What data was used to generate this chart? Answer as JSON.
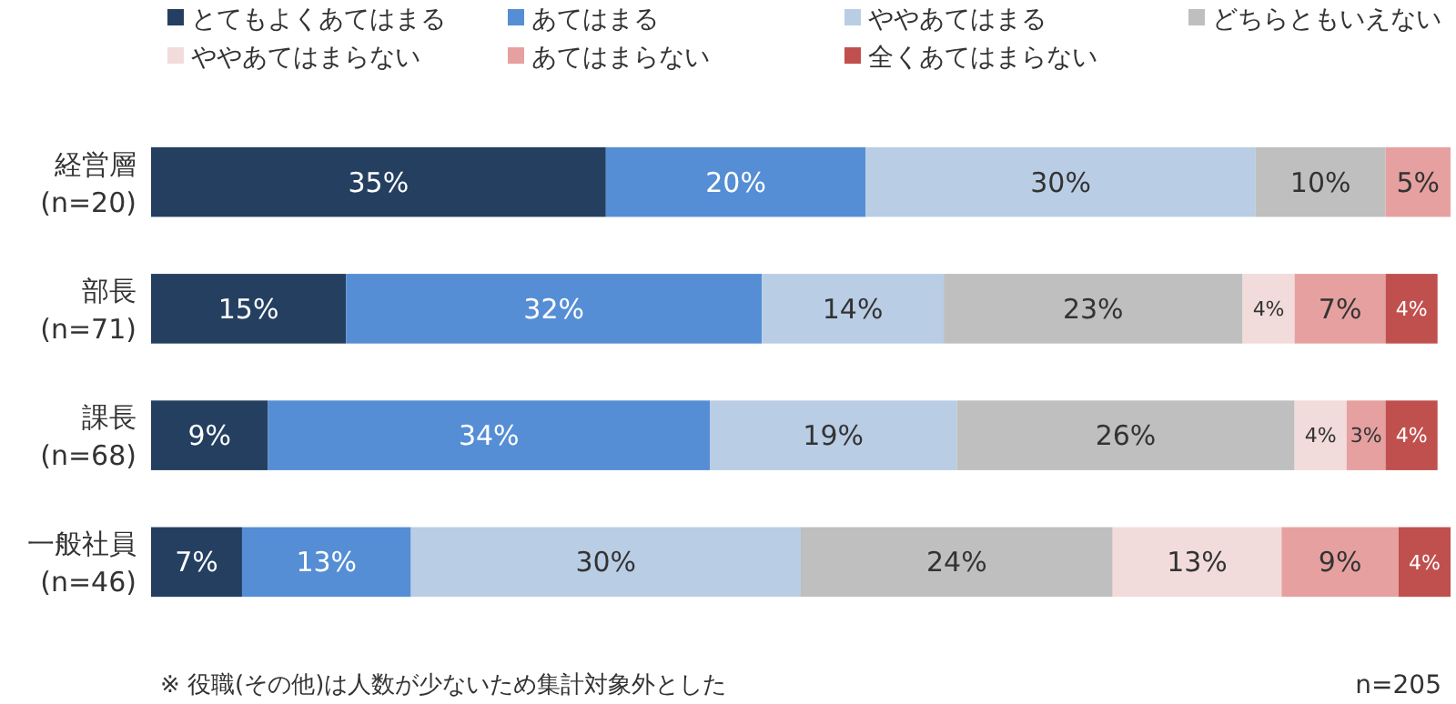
{
  "chart_data": {
    "type": "bar",
    "orientation": "horizontal",
    "stacked": true,
    "categories": [
      "経営層\n(n=20)",
      "部長\n(n=71)",
      "課長\n(n=68)",
      "一般社員\n(n=46)"
    ],
    "series": [
      {
        "name": "とてもよくあてはまる",
        "color": "#243f60",
        "values": [
          35,
          15,
          9,
          7
        ],
        "value_labels": [
          "35%",
          "15%",
          "9%",
          "7%"
        ]
      },
      {
        "name": "あてはまる",
        "color": "#558ed5",
        "values": [
          20,
          32,
          34,
          13
        ],
        "value_labels": [
          "20%",
          "32%",
          "34%",
          "13%"
        ]
      },
      {
        "name": "ややあてはまる",
        "color": "#b9cde5",
        "values": [
          30,
          14,
          19,
          30
        ],
        "value_labels": [
          "30%",
          "14%",
          "19%",
          "30%"
        ]
      },
      {
        "name": "どちらともいえない",
        "color": "#bfbfbf",
        "values": [
          10,
          23,
          26,
          24
        ],
        "value_labels": [
          "10%",
          "23%",
          "26%",
          "24%"
        ]
      },
      {
        "name": "ややあてはまらない",
        "color": "#f2dcdb",
        "values": [
          null,
          4,
          4,
          13
        ],
        "value_labels": [
          null,
          "4%",
          "4%",
          "13%"
        ]
      },
      {
        "name": "あてはまらない",
        "color": "#e6a0a0",
        "values": [
          5,
          7,
          3,
          9
        ],
        "value_labels": [
          "5%",
          "7%",
          "3%",
          "9%"
        ]
      },
      {
        "name": "全くあてはまらない",
        "color": "#c0504d",
        "values": [
          null,
          4,
          4,
          4
        ],
        "value_labels": [
          null,
          "4%",
          "4%",
          "4%"
        ]
      }
    ],
    "tick_labels": "y",
    "legend": "top",
    "annotations": [
      "※ 役職(その他)は人数が少ないため集計対象外とした",
      "n=205"
    ]
  }
}
